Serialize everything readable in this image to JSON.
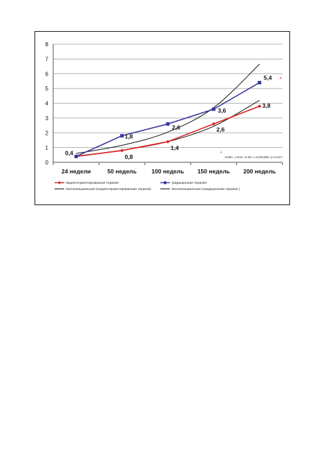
{
  "chart_data": {
    "type": "line",
    "categories": [
      "24 недели",
      "50 недель",
      "100 недель",
      "150 недель",
      "200 недель"
    ],
    "ylim": [
      0,
      8
    ],
    "yticks": [
      "0",
      "1",
      "2",
      "3",
      "4",
      "5",
      "6",
      "7",
      "8"
    ],
    "grid": true,
    "legend_position": "bottom",
    "series": [
      {
        "name": "пациенториентированная терапия",
        "values": [
          0.4,
          0.8,
          1.4,
          2.6,
          3.8
        ],
        "labels": [
          "",
          "0,8",
          "1,4",
          "2,6",
          "3,8"
        ],
        "color": "#e02020",
        "marker": "diamond"
      },
      {
        "name": "традиционная терапия",
        "values": [
          0.4,
          1.8,
          2.6,
          3.6,
          5.4
        ],
        "labels": [
          "0,4",
          "1,8",
          "2,6",
          "3,6",
          "5,4"
        ],
        "color": "#3a3a9c",
        "marker": "square"
      }
    ],
    "trendlines": [
      {
        "name": "Экспоненциальная (пациенториентированная терапия)",
        "type": "exponential",
        "color": "#111111",
        "values": [
          0.43,
          0.82,
          1.4,
          2.44,
          4.2
        ]
      },
      {
        "name": "Экспоненциальная (традиционная терапия )",
        "type": "exponential",
        "color": "#111111",
        "values": [
          0.6,
          1.15,
          2.05,
          3.7,
          6.65
        ]
      }
    ],
    "annotation": {
      "marker": "*",
      "text": "АСВС, const =0.00; t=3,921992; p=0.017",
      "color": "#e02020"
    },
    "star_marker": "*"
  }
}
